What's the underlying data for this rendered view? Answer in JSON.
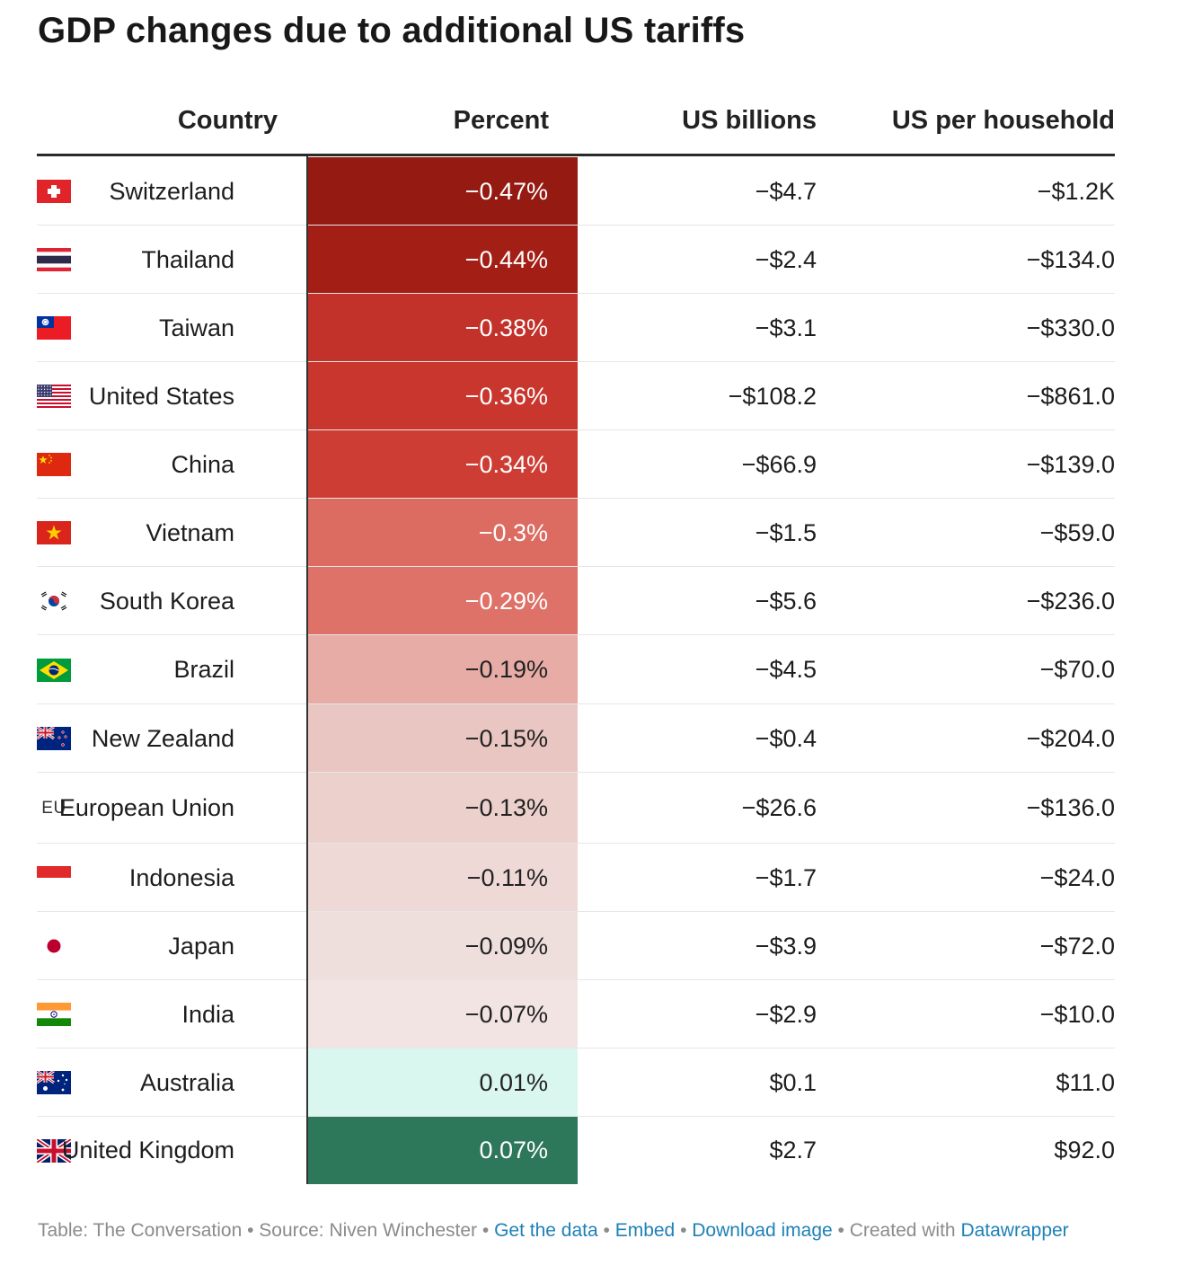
{
  "title": "GDP changes due to additional US tariffs",
  "columns": {
    "country": "Country",
    "percent": "Percent",
    "billions": "US billions",
    "household": "US per household"
  },
  "chart_data": {
    "type": "table",
    "title": "GDP changes due to additional US tariffs",
    "columns": [
      "Country",
      "Percent",
      "US billions",
      "US per household"
    ],
    "rows": [
      {
        "country": "Switzerland",
        "flag": "switzerland-flag-icon",
        "percent": -0.47,
        "percent_label": "−0.47%",
        "billions": "−$4.7",
        "household": "−$1.2K",
        "bg": "#941a12",
        "fg": "#ffffff"
      },
      {
        "country": "Thailand",
        "flag": "thailand-flag-icon",
        "percent": -0.44,
        "percent_label": "−0.44%",
        "billions": "−$2.4",
        "household": "−$134.0",
        "bg": "#a31f16",
        "fg": "#ffffff"
      },
      {
        "country": "Taiwan",
        "flag": "taiwan-flag-icon",
        "percent": -0.38,
        "percent_label": "−0.38%",
        "billions": "−$3.1",
        "household": "−$330.0",
        "bg": "#c3322a",
        "fg": "#ffffff"
      },
      {
        "country": "United States",
        "flag": "united-states-flag-icon",
        "percent": -0.36,
        "percent_label": "−0.36%",
        "billions": "−$108.2",
        "household": "−$861.0",
        "bg": "#c8362d",
        "fg": "#ffffff"
      },
      {
        "country": "China",
        "flag": "china-flag-icon",
        "percent": -0.34,
        "percent_label": "−0.34%",
        "billions": "−$66.9",
        "household": "−$139.0",
        "bg": "#cd3d33",
        "fg": "#ffffff"
      },
      {
        "country": "Vietnam",
        "flag": "vietnam-flag-icon",
        "percent": -0.3,
        "percent_label": "−0.3%",
        "billions": "−$1.5",
        "household": "−$59.0",
        "bg": "#dc6b61",
        "fg": "#ffffff"
      },
      {
        "country": "South Korea",
        "flag": "south-korea-flag-icon",
        "percent": -0.29,
        "percent_label": "−0.29%",
        "billions": "−$5.6",
        "household": "−$236.0",
        "bg": "#de7268",
        "fg": "#ffffff"
      },
      {
        "country": "Brazil",
        "flag": "brazil-flag-icon",
        "percent": -0.19,
        "percent_label": "−0.19%",
        "billions": "−$4.5",
        "household": "−$70.0",
        "bg": "#e6aca5",
        "fg": "#222222"
      },
      {
        "country": "New Zealand",
        "flag": "new-zealand-flag-icon",
        "percent": -0.15,
        "percent_label": "−0.15%",
        "billions": "−$0.4",
        "household": "−$204.0",
        "bg": "#e9c6c1",
        "fg": "#222222"
      },
      {
        "country": "European Union",
        "flag": "eu-label",
        "flag_text": "EU",
        "percent": -0.13,
        "percent_label": "−0.13%",
        "billions": "−$26.6",
        "household": "−$136.0",
        "bg": "#ecd0cc",
        "fg": "#222222"
      },
      {
        "country": "Indonesia",
        "flag": "indonesia-flag-icon",
        "percent": -0.11,
        "percent_label": "−0.11%",
        "billions": "−$1.7",
        "household": "−$24.0",
        "bg": "#eed9d6",
        "fg": "#222222"
      },
      {
        "country": "Japan",
        "flag": "japan-flag-icon",
        "percent": -0.09,
        "percent_label": "−0.09%",
        "billions": "−$3.9",
        "household": "−$72.0",
        "bg": "#efdfdc",
        "fg": "#222222"
      },
      {
        "country": "India",
        "flag": "india-flag-icon",
        "percent": -0.07,
        "percent_label": "−0.07%",
        "billions": "−$2.9",
        "household": "−$10.0",
        "bg": "#f1e4e2",
        "fg": "#222222"
      },
      {
        "country": "Australia",
        "flag": "australia-flag-icon",
        "percent": 0.01,
        "percent_label": "0.01%",
        "billions": "$0.1",
        "household": "$11.0",
        "bg": "#d9f7ef",
        "fg": "#222222"
      },
      {
        "country": "United Kingdom",
        "flag": "united-kingdom-flag-icon",
        "percent": 0.07,
        "percent_label": "0.07%",
        "billions": "$2.7",
        "household": "$92.0",
        "bg": "#2d775a",
        "fg": "#ffffff"
      }
    ]
  },
  "footer": {
    "prefix": "Table: The Conversation • Source: Niven Winchester • ",
    "get_data": "Get the data",
    "sep1": " • ",
    "embed": "Embed",
    "sep2": "  • ",
    "download": "Download image",
    "sep3": " • Created with ",
    "datawrapper": "Datawrapper"
  }
}
